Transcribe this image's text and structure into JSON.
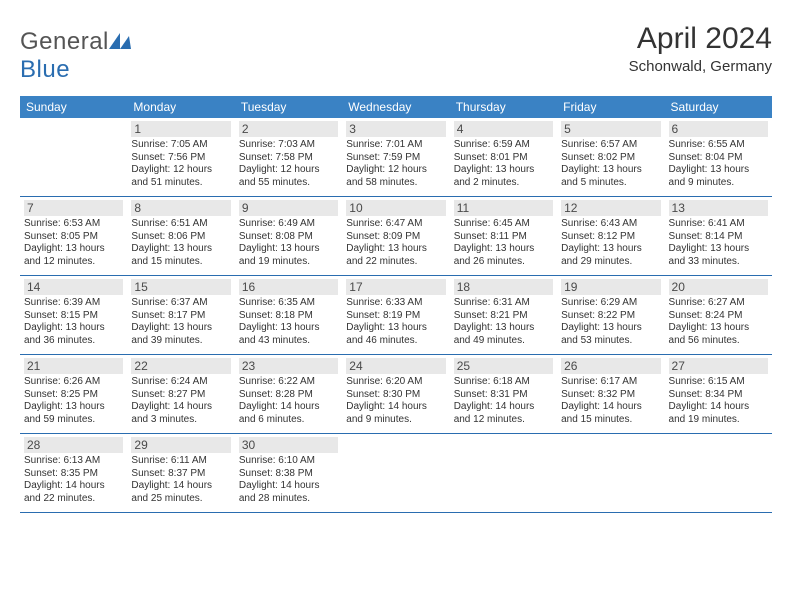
{
  "logo": {
    "textGray": "General",
    "textBlue": "Blue"
  },
  "title": "April 2024",
  "location": "Schonwald, Germany",
  "colors": {
    "headerBar": "#3a82c4",
    "weekDivider": "#2a6db0",
    "dayNumBg": "#e8e8e8",
    "logoBlue": "#2a6db0"
  },
  "weekdays": [
    "Sunday",
    "Monday",
    "Tuesday",
    "Wednesday",
    "Thursday",
    "Friday",
    "Saturday"
  ],
  "weeks": [
    [
      {
        "day": "",
        "sunrise": "",
        "sunset": "",
        "daylight": ""
      },
      {
        "day": "1",
        "sunrise": "Sunrise: 7:05 AM",
        "sunset": "Sunset: 7:56 PM",
        "daylight": "Daylight: 12 hours and 51 minutes."
      },
      {
        "day": "2",
        "sunrise": "Sunrise: 7:03 AM",
        "sunset": "Sunset: 7:58 PM",
        "daylight": "Daylight: 12 hours and 55 minutes."
      },
      {
        "day": "3",
        "sunrise": "Sunrise: 7:01 AM",
        "sunset": "Sunset: 7:59 PM",
        "daylight": "Daylight: 12 hours and 58 minutes."
      },
      {
        "day": "4",
        "sunrise": "Sunrise: 6:59 AM",
        "sunset": "Sunset: 8:01 PM",
        "daylight": "Daylight: 13 hours and 2 minutes."
      },
      {
        "day": "5",
        "sunrise": "Sunrise: 6:57 AM",
        "sunset": "Sunset: 8:02 PM",
        "daylight": "Daylight: 13 hours and 5 minutes."
      },
      {
        "day": "6",
        "sunrise": "Sunrise: 6:55 AM",
        "sunset": "Sunset: 8:04 PM",
        "daylight": "Daylight: 13 hours and 9 minutes."
      }
    ],
    [
      {
        "day": "7",
        "sunrise": "Sunrise: 6:53 AM",
        "sunset": "Sunset: 8:05 PM",
        "daylight": "Daylight: 13 hours and 12 minutes."
      },
      {
        "day": "8",
        "sunrise": "Sunrise: 6:51 AM",
        "sunset": "Sunset: 8:06 PM",
        "daylight": "Daylight: 13 hours and 15 minutes."
      },
      {
        "day": "9",
        "sunrise": "Sunrise: 6:49 AM",
        "sunset": "Sunset: 8:08 PM",
        "daylight": "Daylight: 13 hours and 19 minutes."
      },
      {
        "day": "10",
        "sunrise": "Sunrise: 6:47 AM",
        "sunset": "Sunset: 8:09 PM",
        "daylight": "Daylight: 13 hours and 22 minutes."
      },
      {
        "day": "11",
        "sunrise": "Sunrise: 6:45 AM",
        "sunset": "Sunset: 8:11 PM",
        "daylight": "Daylight: 13 hours and 26 minutes."
      },
      {
        "day": "12",
        "sunrise": "Sunrise: 6:43 AM",
        "sunset": "Sunset: 8:12 PM",
        "daylight": "Daylight: 13 hours and 29 minutes."
      },
      {
        "day": "13",
        "sunrise": "Sunrise: 6:41 AM",
        "sunset": "Sunset: 8:14 PM",
        "daylight": "Daylight: 13 hours and 33 minutes."
      }
    ],
    [
      {
        "day": "14",
        "sunrise": "Sunrise: 6:39 AM",
        "sunset": "Sunset: 8:15 PM",
        "daylight": "Daylight: 13 hours and 36 minutes."
      },
      {
        "day": "15",
        "sunrise": "Sunrise: 6:37 AM",
        "sunset": "Sunset: 8:17 PM",
        "daylight": "Daylight: 13 hours and 39 minutes."
      },
      {
        "day": "16",
        "sunrise": "Sunrise: 6:35 AM",
        "sunset": "Sunset: 8:18 PM",
        "daylight": "Daylight: 13 hours and 43 minutes."
      },
      {
        "day": "17",
        "sunrise": "Sunrise: 6:33 AM",
        "sunset": "Sunset: 8:19 PM",
        "daylight": "Daylight: 13 hours and 46 minutes."
      },
      {
        "day": "18",
        "sunrise": "Sunrise: 6:31 AM",
        "sunset": "Sunset: 8:21 PM",
        "daylight": "Daylight: 13 hours and 49 minutes."
      },
      {
        "day": "19",
        "sunrise": "Sunrise: 6:29 AM",
        "sunset": "Sunset: 8:22 PM",
        "daylight": "Daylight: 13 hours and 53 minutes."
      },
      {
        "day": "20",
        "sunrise": "Sunrise: 6:27 AM",
        "sunset": "Sunset: 8:24 PM",
        "daylight": "Daylight: 13 hours and 56 minutes."
      }
    ],
    [
      {
        "day": "21",
        "sunrise": "Sunrise: 6:26 AM",
        "sunset": "Sunset: 8:25 PM",
        "daylight": "Daylight: 13 hours and 59 minutes."
      },
      {
        "day": "22",
        "sunrise": "Sunrise: 6:24 AM",
        "sunset": "Sunset: 8:27 PM",
        "daylight": "Daylight: 14 hours and 3 minutes."
      },
      {
        "day": "23",
        "sunrise": "Sunrise: 6:22 AM",
        "sunset": "Sunset: 8:28 PM",
        "daylight": "Daylight: 14 hours and 6 minutes."
      },
      {
        "day": "24",
        "sunrise": "Sunrise: 6:20 AM",
        "sunset": "Sunset: 8:30 PM",
        "daylight": "Daylight: 14 hours and 9 minutes."
      },
      {
        "day": "25",
        "sunrise": "Sunrise: 6:18 AM",
        "sunset": "Sunset: 8:31 PM",
        "daylight": "Daylight: 14 hours and 12 minutes."
      },
      {
        "day": "26",
        "sunrise": "Sunrise: 6:17 AM",
        "sunset": "Sunset: 8:32 PM",
        "daylight": "Daylight: 14 hours and 15 minutes."
      },
      {
        "day": "27",
        "sunrise": "Sunrise: 6:15 AM",
        "sunset": "Sunset: 8:34 PM",
        "daylight": "Daylight: 14 hours and 19 minutes."
      }
    ],
    [
      {
        "day": "28",
        "sunrise": "Sunrise: 6:13 AM",
        "sunset": "Sunset: 8:35 PM",
        "daylight": "Daylight: 14 hours and 22 minutes."
      },
      {
        "day": "29",
        "sunrise": "Sunrise: 6:11 AM",
        "sunset": "Sunset: 8:37 PM",
        "daylight": "Daylight: 14 hours and 25 minutes."
      },
      {
        "day": "30",
        "sunrise": "Sunrise: 6:10 AM",
        "sunset": "Sunset: 8:38 PM",
        "daylight": "Daylight: 14 hours and 28 minutes."
      },
      {
        "day": "",
        "sunrise": "",
        "sunset": "",
        "daylight": ""
      },
      {
        "day": "",
        "sunrise": "",
        "sunset": "",
        "daylight": ""
      },
      {
        "day": "",
        "sunrise": "",
        "sunset": "",
        "daylight": ""
      },
      {
        "day": "",
        "sunrise": "",
        "sunset": "",
        "daylight": ""
      }
    ]
  ]
}
